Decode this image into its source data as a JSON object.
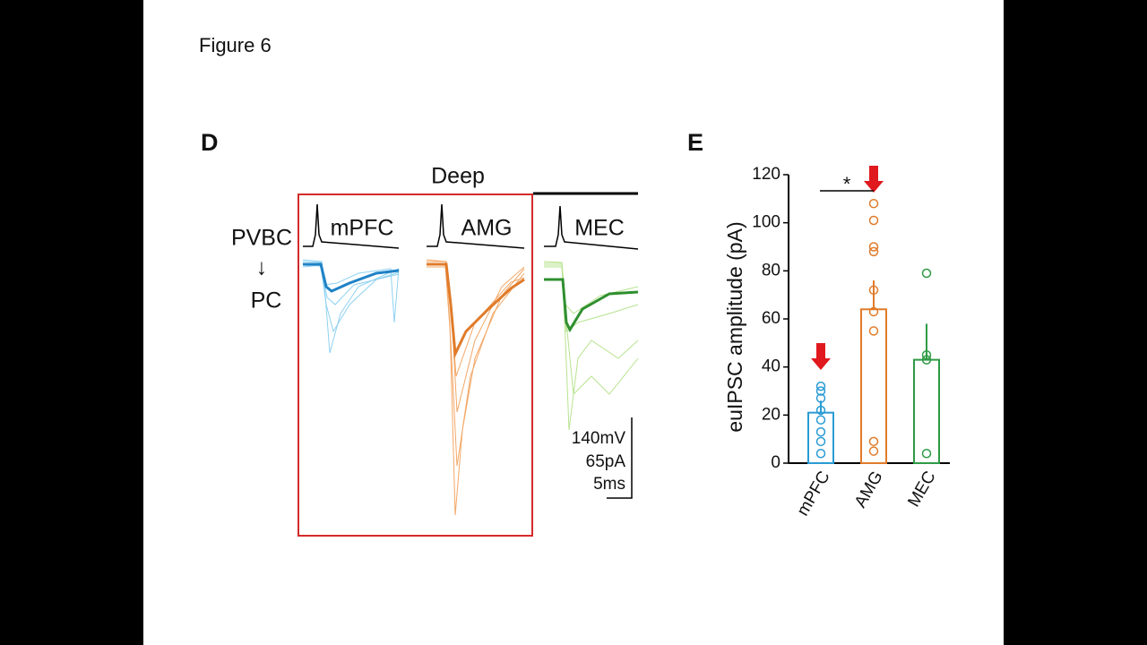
{
  "slide_title": "Figure 6",
  "panel_d": {
    "label": "D",
    "group": "Deep",
    "presynaptic": "PVBC",
    "arrow": "↓",
    "postsynaptic": "PC",
    "traces": [
      "mPFC",
      "AMG",
      "MEC"
    ],
    "scale_bar": [
      "140mV",
      "65pA",
      "5ms"
    ]
  },
  "chart_data": {
    "type": "bar",
    "panel_label": "E",
    "y_label": "euIPSC amplitude (pA)",
    "categories": [
      "mPFC",
      "AMG",
      "MEC"
    ],
    "values": [
      21,
      64,
      43
    ],
    "errors": [
      5,
      12,
      15
    ],
    "colors": [
      "#2a9bd4",
      "#e07b2a",
      "#2f9a45"
    ],
    "points": [
      [
        32,
        30,
        27,
        22,
        18,
        13,
        9,
        4
      ],
      [
        108,
        101,
        90,
        88,
        72,
        63,
        55,
        9,
        5
      ],
      [
        79,
        45,
        43,
        4
      ]
    ],
    "significance": "*",
    "ylim": [
      0,
      120
    ],
    "yticks": [
      0,
      20,
      40,
      60,
      80,
      100,
      120
    ]
  }
}
